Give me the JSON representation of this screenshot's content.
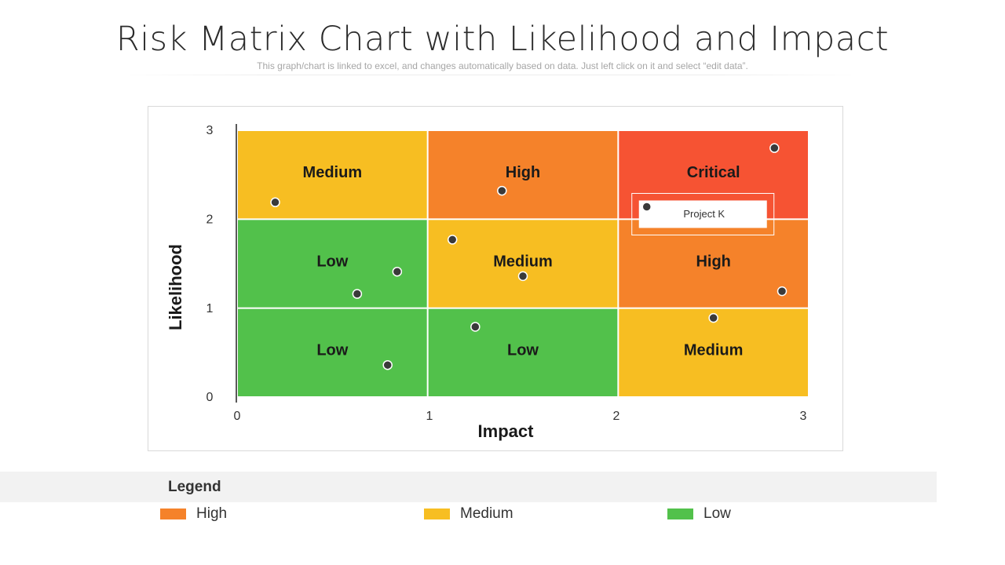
{
  "page": {
    "title": "Risk Matrix Chart with Likelihood and Impact",
    "subtitle": "This graph/chart is linked to excel, and changes automatically based on data. Just left click on it and select “edit data”."
  },
  "legend": {
    "title": "Legend",
    "items": [
      {
        "label": "High",
        "color": "#F5822A"
      },
      {
        "label": "Medium",
        "color": "#F7BE22"
      },
      {
        "label": "Low",
        "color": "#52C14B"
      }
    ]
  },
  "chart_data": {
    "type": "scatter",
    "xlabel": "Impact",
    "ylabel": "Likelihood",
    "xlim": [
      0,
      3
    ],
    "ylim": [
      0,
      3
    ],
    "x_ticks": [
      "0",
      "1",
      "2",
      "3"
    ],
    "y_ticks": [
      "0",
      "1",
      "2",
      "3"
    ],
    "colors": {
      "Low": "#52C14B",
      "Medium": "#F7BE22",
      "High": "#F5822A",
      "Critical": "#F65333",
      "point": "#3a3a3a"
    },
    "zones": [
      {
        "col": 0,
        "row": 0,
        "label": "Low",
        "level": "Low"
      },
      {
        "col": 1,
        "row": 0,
        "label": "Low",
        "level": "Low"
      },
      {
        "col": 2,
        "row": 0,
        "label": "Medium",
        "level": "Medium"
      },
      {
        "col": 0,
        "row": 1,
        "label": "Low",
        "level": "Low"
      },
      {
        "col": 1,
        "row": 1,
        "label": "Medium",
        "level": "Medium"
      },
      {
        "col": 2,
        "row": 1,
        "label": "High",
        "level": "High"
      },
      {
        "col": 0,
        "row": 2,
        "label": "Medium",
        "level": "Medium"
      },
      {
        "col": 1,
        "row": 2,
        "label": "High",
        "level": "High"
      },
      {
        "col": 2,
        "row": 2,
        "label": "Critical",
        "level": "Critical"
      }
    ],
    "points": [
      {
        "x": 0.2,
        "y": 2.19
      },
      {
        "x": 0.84,
        "y": 1.41
      },
      {
        "x": 0.63,
        "y": 1.16
      },
      {
        "x": 0.79,
        "y": 0.36
      },
      {
        "x": 1.13,
        "y": 1.77
      },
      {
        "x": 1.39,
        "y": 2.32
      },
      {
        "x": 1.5,
        "y": 1.36
      },
      {
        "x": 1.25,
        "y": 0.79
      },
      {
        "x": 2.82,
        "y": 2.8
      },
      {
        "x": 2.15,
        "y": 2.14,
        "label": "Project K"
      },
      {
        "x": 2.86,
        "y": 1.19
      },
      {
        "x": 2.5,
        "y": 0.89
      }
    ]
  }
}
